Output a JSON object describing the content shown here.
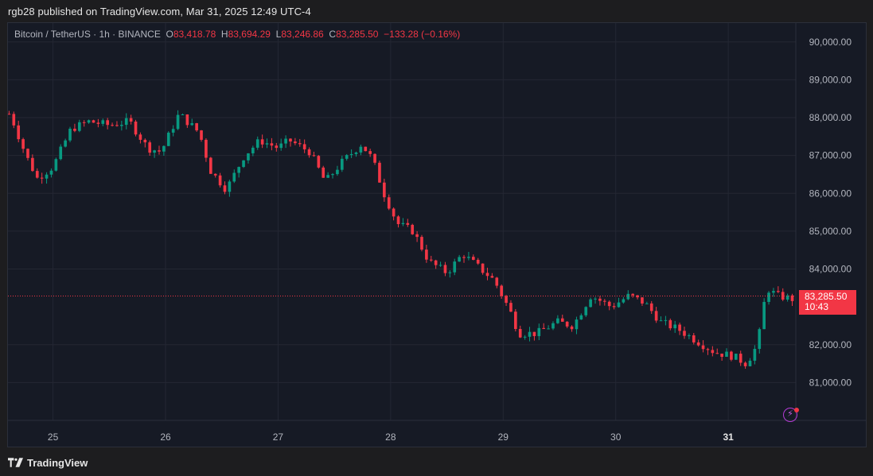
{
  "header": {
    "caption": "rgb28 published on TradingView.com, Mar 31, 2025 12:49 UTC-4"
  },
  "legend": {
    "symbol": "Bitcoin / TetherUS · 1h · BINANCE",
    "open_label": "O",
    "open": "83,418.78",
    "high_label": "H",
    "high": "83,694.29",
    "low_label": "L",
    "low": "83,246.86",
    "close_label": "C",
    "close": "83,285.50",
    "change": "−133.28 (−0.16%)"
  },
  "price_tag": {
    "price": "83,285.50",
    "countdown": "10:43"
  },
  "footer": {
    "brand": "TradingView",
    "logo_icon": "tradingview-logo-icon"
  },
  "colors": {
    "up": "#089981",
    "down": "#f23645",
    "background": "#161a25",
    "grid": "#242733",
    "axis_text": "#b2b5be"
  },
  "chart_data": {
    "type": "candlestick",
    "title": "",
    "xlabel": "",
    "ylabel": "",
    "ylim": [
      80000,
      90500
    ],
    "xlim": [
      24.6,
      31.6
    ],
    "last_price": 83285.5,
    "y_ticks": [
      {
        "value": 90000,
        "label": "90,000.00"
      },
      {
        "value": 89000,
        "label": "89,000.00"
      },
      {
        "value": 88000,
        "label": "88,000.00"
      },
      {
        "value": 87000,
        "label": "87,000.00"
      },
      {
        "value": 86000,
        "label": "86,000.00"
      },
      {
        "value": 85000,
        "label": "85,000.00"
      },
      {
        "value": 84000,
        "label": "84,000.00"
      },
      {
        "value": 82000,
        "label": "82,000.00"
      },
      {
        "value": 81000,
        "label": "81,000.00"
      }
    ],
    "x_ticks": [
      {
        "value": 25,
        "label": "25",
        "bold": false
      },
      {
        "value": 26,
        "label": "26",
        "bold": false
      },
      {
        "value": 27,
        "label": "27",
        "bold": false
      },
      {
        "value": 28,
        "label": "28",
        "bold": false
      },
      {
        "value": 29,
        "label": "29",
        "bold": false
      },
      {
        "value": 30,
        "label": "30",
        "bold": false
      },
      {
        "value": 31,
        "label": "31",
        "bold": true
      }
    ],
    "close_anchors": [
      [
        24.62,
        88100
      ],
      [
        24.76,
        87000
      ],
      [
        24.86,
        86400
      ],
      [
        25.0,
        86700
      ],
      [
        25.16,
        87700
      ],
      [
        25.32,
        87900
      ],
      [
        25.5,
        87800
      ],
      [
        25.68,
        87900
      ],
      [
        25.84,
        87200
      ],
      [
        25.96,
        87100
      ],
      [
        26.12,
        88100
      ],
      [
        26.3,
        87600
      ],
      [
        26.4,
        86600
      ],
      [
        26.54,
        86100
      ],
      [
        26.7,
        87000
      ],
      [
        26.84,
        87400
      ],
      [
        27.0,
        87200
      ],
      [
        27.1,
        87400
      ],
      [
        27.28,
        87100
      ],
      [
        27.42,
        86300
      ],
      [
        27.56,
        86800
      ],
      [
        27.74,
        87300
      ],
      [
        27.84,
        86900
      ],
      [
        27.94,
        86000
      ],
      [
        28.06,
        85200
      ],
      [
        28.2,
        85000
      ],
      [
        28.34,
        84200
      ],
      [
        28.5,
        83900
      ],
      [
        28.64,
        84400
      ],
      [
        28.76,
        84100
      ],
      [
        28.92,
        83700
      ],
      [
        29.06,
        82900
      ],
      [
        29.14,
        82300
      ],
      [
        29.3,
        82300
      ],
      [
        29.48,
        82600
      ],
      [
        29.62,
        82500
      ],
      [
        29.78,
        83300
      ],
      [
        29.96,
        83000
      ],
      [
        30.12,
        83300
      ],
      [
        30.26,
        83100
      ],
      [
        30.4,
        82600
      ],
      [
        30.56,
        82400
      ],
      [
        30.72,
        82100
      ],
      [
        30.88,
        81800
      ],
      [
        31.04,
        81700
      ],
      [
        31.16,
        81500
      ],
      [
        31.26,
        82000
      ],
      [
        31.34,
        83500
      ],
      [
        31.43,
        83300
      ],
      [
        31.58,
        83200
      ]
    ]
  }
}
